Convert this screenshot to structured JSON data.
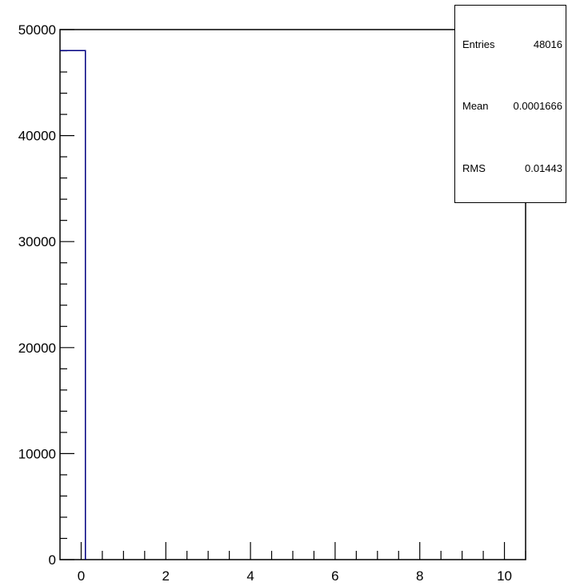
{
  "chart_data": {
    "type": "bar",
    "title": "",
    "xlabel": "",
    "ylabel": "",
    "xlim": [
      -0.5,
      10.5
    ],
    "ylim": [
      0,
      50000
    ],
    "bins": [
      {
        "x_low": -0.5,
        "x_high": 0.1,
        "value": 48016
      }
    ],
    "xticks": [
      "0",
      "2",
      "4",
      "6",
      "8",
      "10"
    ],
    "yticks": [
      "0",
      "10000",
      "20000",
      "30000",
      "40000",
      "50000"
    ],
    "line_color": "#000080",
    "grid": false,
    "legend": "none"
  },
  "stats": {
    "entries_label": "Entries",
    "entries_value": "48016",
    "mean_label": "Mean",
    "mean_value": "0.0001666",
    "rms_label": "RMS",
    "rms_value": "0.01443"
  }
}
